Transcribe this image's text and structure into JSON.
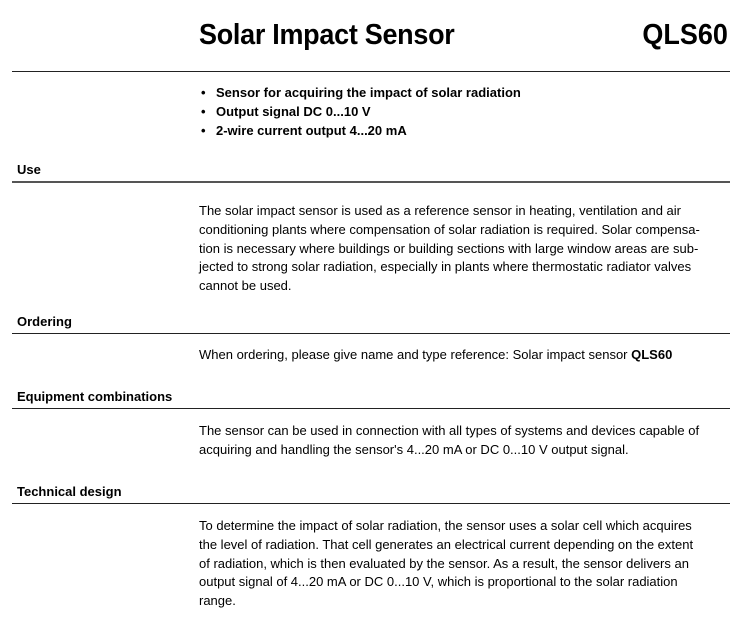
{
  "header": {
    "title": "Solar Impact Sensor",
    "type_code": "QLS60"
  },
  "features": [
    "Sensor for acquiring the impact of solar radiation",
    "Output signal DC 0...10 V",
    "2-wire current output 4...20 mA"
  ],
  "sections": {
    "use": {
      "heading": "Use",
      "lines": [
        "The solar impact sensor is used as a reference sensor in heating, ventilation and air",
        "conditioning plants where compensation of solar radiation is required. Solar compensa-",
        "tion is necessary where buildings or building sections with large window areas are sub-",
        "jected to strong solar radiation, especially in plants where thermostatic radiator valves",
        "cannot be used."
      ]
    },
    "ordering": {
      "heading": "Ordering",
      "text": "When ordering, please give name and type reference: Solar impact sensor ",
      "bold": "QLS60"
    },
    "equipment": {
      "heading": "Equipment combinations",
      "lines": [
        "The sensor can be used in connection with all types of systems and devices capable of",
        "acquiring and handling the sensor's 4...20 mA or DC 0...10 V output signal."
      ]
    },
    "technical": {
      "heading": "Technical design",
      "lines": [
        "To determine the impact of solar radiation, the sensor uses a solar cell which acquires",
        "the level of radiation. That cell generates an electrical current depending on the extent",
        "of radiation, which is then evaluated by the sensor. As a result, the sensor delivers an",
        "output signal of 4...20 mA or DC 0...10 V, which is proportional to the solar radiation",
        "range."
      ]
    }
  }
}
